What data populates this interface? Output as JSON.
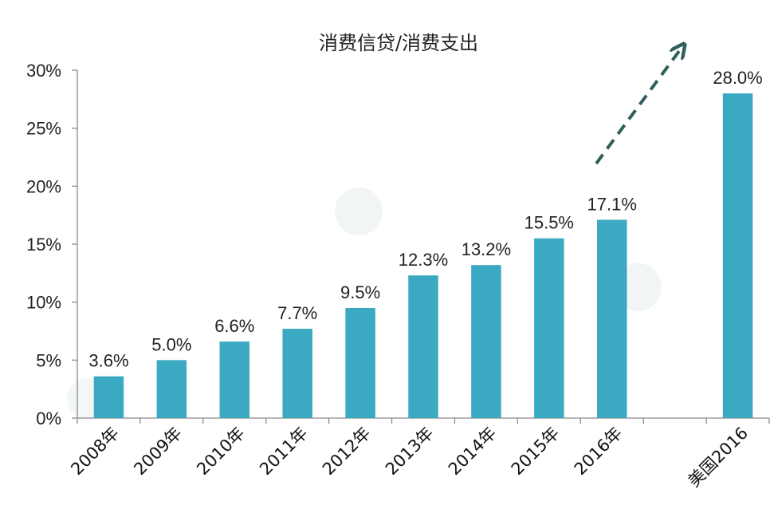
{
  "chart_data": {
    "type": "bar",
    "title": "消费信贷/消费支出",
    "categories": [
      "2008年",
      "2009年",
      "2010年",
      "2011年",
      "2012年",
      "2013年",
      "2014年",
      "2015年",
      "2016年",
      "",
      "美国2016"
    ],
    "values": [
      3.6,
      5.0,
      6.6,
      7.7,
      9.5,
      12.3,
      13.2,
      15.5,
      17.1,
      null,
      28.0
    ],
    "data_labels": [
      "3.6%",
      "5.0%",
      "6.6%",
      "7.7%",
      "9.5%",
      "12.3%",
      "13.2%",
      "15.5%",
      "17.1%",
      "",
      "28.0%"
    ],
    "y_ticks": [
      "0%",
      "5%",
      "10%",
      "15%",
      "20%",
      "25%",
      "30%"
    ],
    "ylim": [
      0,
      30
    ],
    "grid": false,
    "legend": "none",
    "bar_color": "#3ba9c1",
    "annotation": "dashed arrow from 2016年 bar rising toward 美国2016 bar",
    "arrow_color": "#2f5f5a"
  }
}
